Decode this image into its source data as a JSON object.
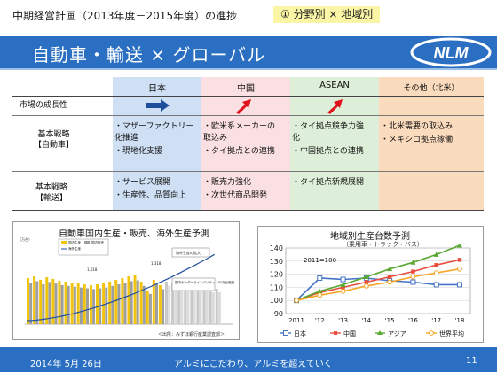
{
  "header": {
    "title": "中期経営計画（2013年度－2015年度）の進捗",
    "tag": "① 分野別 × 地域別"
  },
  "banner": {
    "title": "自動車・輸送 × グローバル",
    "logo_text": "NLM"
  },
  "table": {
    "columns": [
      "日本",
      "中国",
      "ASEAN",
      "その他（北米）"
    ],
    "rows": [
      {
        "label": "市場の成長性",
        "cells": [
          [
            "up-right-arrow"
          ],
          [
            "up-right-arrow"
          ],
          [
            "up-right-arrow"
          ],
          []
        ]
      },
      {
        "label": "基本戦略\n【自動車】",
        "cells": [
          [
            "・マザーファクトリー",
            "  化推進",
            "・現地化支援"
          ],
          [
            "・欧米系メーカーの",
            "  取込み",
            "・タイ拠点との連携"
          ],
          [
            "・タイ拠点競争力強",
            "  化",
            "・中国拠点との連携"
          ],
          [
            "・北米需要の取込み",
            "・メキシコ拠点稼働"
          ]
        ]
      },
      {
        "label": "基本戦略\n【輸送】",
        "cells": [
          [
            "・サービス展開",
            "・生産性、品質向上"
          ],
          [
            "・販売力強化",
            "・次世代商品開発"
          ],
          [
            "・タイ拠点新規展開"
          ],
          []
        ]
      }
    ],
    "arrow_colors": {
      "japan": "#1f4e9c",
      "china": "#e0121c",
      "asean": "#e0121c"
    }
  },
  "chart1": {
    "title": "自動車国内生産・販売、海外生産予測",
    "note": "＜出所：みずほ銀行産業調査部＞",
    "legend": [
      "国内生産",
      "国内販売",
      "海外生産"
    ],
    "labels": {
      "unit": "（万台）",
      "peak": "1,018",
      "forecast": "1,318",
      "callout1": "海外生産の拡大",
      "callout2": "国内ボーダーラインパリティ\n400万台程度"
    }
  },
  "chart_data": [
    {
      "type": "line",
      "title": "地域別生産台数予測",
      "subtitle": "（乗用車・トラック・バス）",
      "annotation": "2011=100",
      "categories": [
        "2011",
        "'12",
        "'13",
        "'14",
        "'15",
        "'16",
        "'17",
        "'18"
      ],
      "ylim": [
        90,
        140
      ],
      "yticks": [
        90,
        100,
        110,
        120,
        130,
        140
      ],
      "series": [
        {
          "name": "日本",
          "color": "#4472c4",
          "values": [
            100,
            117,
            116,
            117,
            115,
            114,
            112,
            112
          ]
        },
        {
          "name": "中国",
          "color": "#e74c3c",
          "values": [
            100,
            106,
            110,
            114,
            118,
            122,
            127,
            131
          ]
        },
        {
          "name": "アジア",
          "color": "#5aa832",
          "values": [
            100,
            107,
            112,
            118,
            124,
            129,
            135,
            142
          ]
        },
        {
          "name": "世界平均",
          "color": "#f5a623",
          "values": [
            100,
            104,
            107,
            111,
            114,
            118,
            121,
            124
          ]
        }
      ]
    }
  ],
  "footer": {
    "date": "2014年 5月 26日",
    "slogan": "アルミにこだわり、アルミを超えていく",
    "page": "11"
  }
}
